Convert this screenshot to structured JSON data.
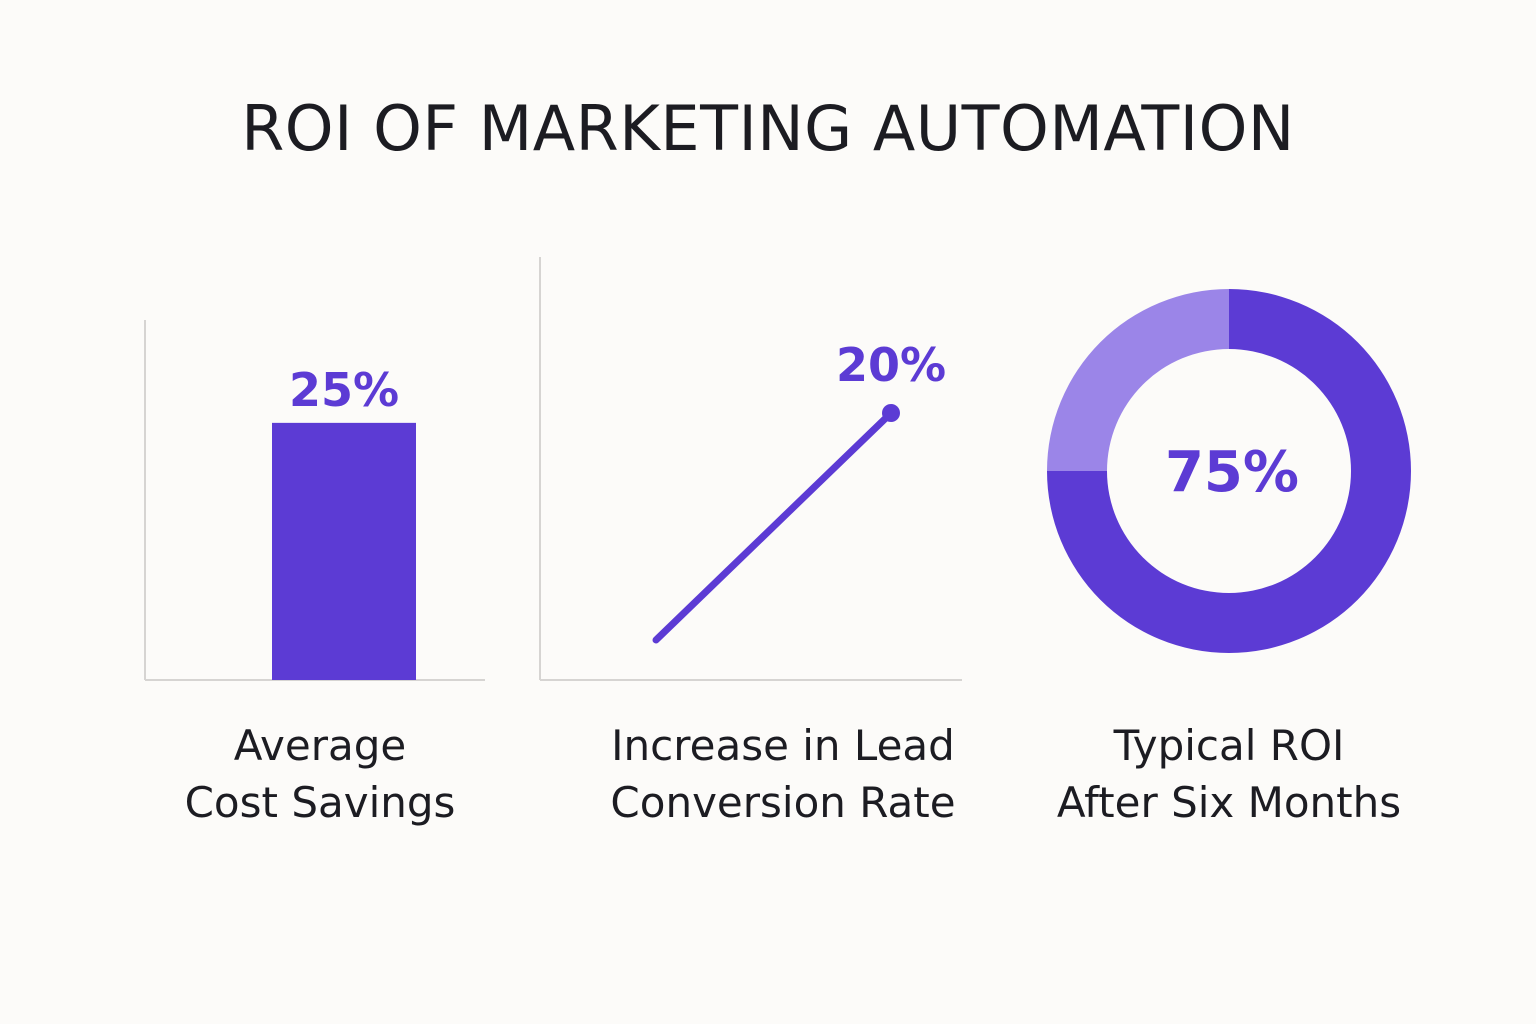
{
  "title": "ROI OF MARKETING AUTOMATION",
  "colors": {
    "accent": "#5c3bd4",
    "accent_light": "#9b85e8",
    "axis": "#d6d4d2",
    "text": "#1c1c22",
    "background": "#fcfbf9"
  },
  "chart_data": [
    {
      "type": "bar",
      "categories": [
        ""
      ],
      "values": [
        25
      ],
      "value_label": "25%",
      "caption_lines": [
        "Average",
        "Cost Savings"
      ]
    },
    {
      "type": "line",
      "x": [
        0,
        1
      ],
      "y": [
        0,
        20
      ],
      "value_label": "20%",
      "caption_lines": [
        "Increase in Lead",
        "Conversion Rate"
      ]
    },
    {
      "type": "pie",
      "donut": true,
      "values": [
        75,
        25
      ],
      "value_label": "75%",
      "caption_lines": [
        "Typical ROI",
        "After Six Months"
      ]
    }
  ]
}
